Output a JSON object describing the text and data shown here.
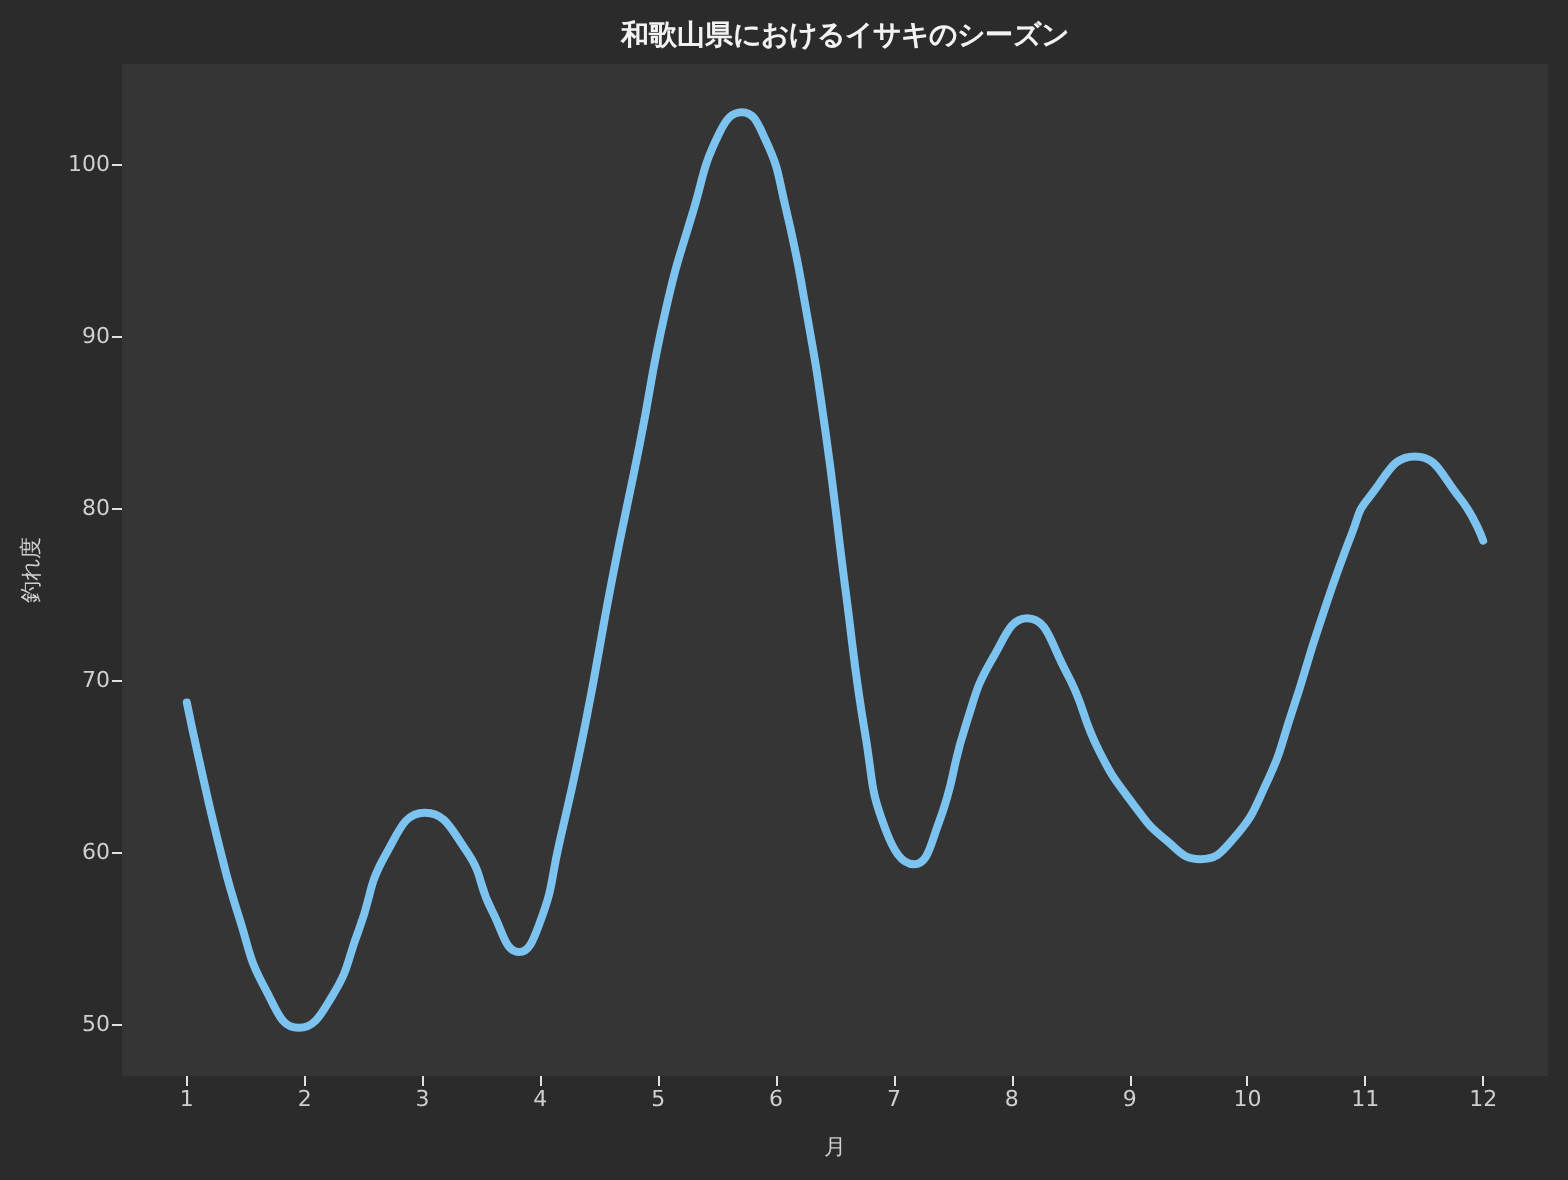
{
  "chart_data": {
    "type": "line",
    "title": "和歌山県におけるイサキのシーズン",
    "xlabel": "月",
    "ylabel": "釣れ度",
    "x": [
      1.0,
      1.1,
      1.27,
      1.44,
      1.67,
      1.95,
      2.23,
      2.46,
      2.69,
      3.02,
      3.37,
      3.59,
      3.82,
      4.0,
      4.16,
      4.38,
      4.61,
      4.84,
      5.06,
      5.29,
      5.52,
      5.71,
      5.91,
      6.08,
      6.25,
      6.42,
      6.59,
      6.76,
      6.93,
      7.17,
      7.38,
      7.61,
      7.84,
      8.13,
      8.46,
      8.74,
      9.03,
      9.31,
      9.6,
      9.87,
      10.16,
      10.38,
      10.61,
      10.89,
      11.03,
      11.42,
      11.8,
      12.0
    ],
    "series": [
      {
        "color": "#7cc3f0",
        "values": [
          68.7,
          65.5,
          60.5,
          56.3,
          52.0,
          49.8,
          51.6,
          55.5,
          59.9,
          62.3,
          60.1,
          56.6,
          54.2,
          56.0,
          60.5,
          67.4,
          75.9,
          83.6,
          91.4,
          97.1,
          101.8,
          103.0,
          101.4,
          97.5,
          91.7,
          84.4,
          75.2,
          66.7,
          61.3,
          59.3,
          61.7,
          67.4,
          71.3,
          73.6,
          70.5,
          65.9,
          62.8,
          60.7,
          59.6,
          60.7,
          64.0,
          68.2,
          73.2,
          78.6,
          80.6,
          83.0,
          80.6,
          78.1
        ]
      }
    ],
    "xlim": [
      0.45,
      12.55
    ],
    "xticks": [
      1,
      2,
      3,
      4,
      5,
      6,
      7,
      8,
      9,
      10,
      11,
      12
    ],
    "ylim": [
      47.0,
      105.8
    ],
    "yticks": [
      50,
      60,
      70,
      80,
      90,
      100
    ],
    "grid": false,
    "marker": "none"
  }
}
